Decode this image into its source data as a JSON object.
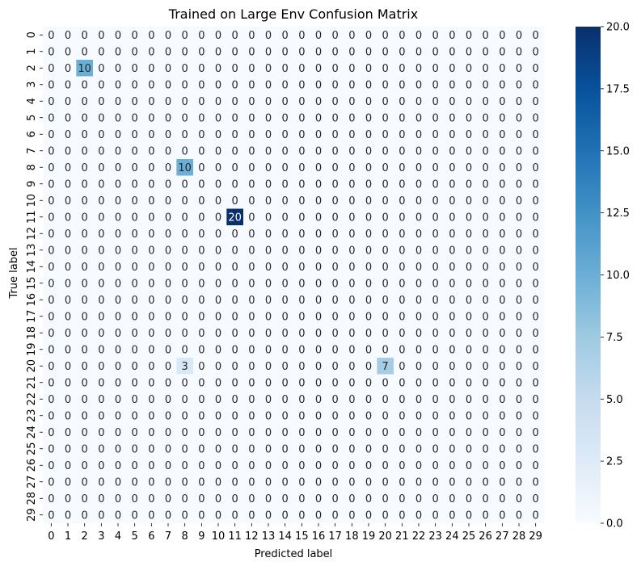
{
  "chart_data": {
    "type": "heatmap",
    "title": "Trained on Large Env Confusion Matrix",
    "xlabel": "Predicted label",
    "ylabel": "True label",
    "x_tick_labels": [
      "0",
      "1",
      "2",
      "3",
      "4",
      "5",
      "6",
      "7",
      "8",
      "9",
      "10",
      "11",
      "12",
      "13",
      "14",
      "15",
      "16",
      "17",
      "18",
      "19",
      "20",
      "21",
      "22",
      "23",
      "24",
      "25",
      "26",
      "27",
      "28",
      "29"
    ],
    "y_tick_labels": [
      "0",
      "1",
      "2",
      "3",
      "4",
      "5",
      "6",
      "7",
      "8",
      "9",
      "10",
      "11",
      "12",
      "13",
      "14",
      "15",
      "16",
      "17",
      "18",
      "19",
      "20",
      "21",
      "22",
      "23",
      "24",
      "25",
      "26",
      "27",
      "28",
      "29"
    ],
    "nonzero_cells": [
      {
        "true": 2,
        "pred": 2,
        "value": 10
      },
      {
        "true": 8,
        "pred": 8,
        "value": 10
      },
      {
        "true": 11,
        "pred": 11,
        "value": 20
      },
      {
        "true": 20,
        "pred": 8,
        "value": 3
      },
      {
        "true": 20,
        "pred": 20,
        "value": 7
      }
    ],
    "default_value": 0,
    "value_range": [
      0,
      20
    ],
    "colormap": "Blues",
    "colorbar_ticks": [
      "0.0",
      "2.5",
      "5.0",
      "7.5",
      "10.0",
      "12.5",
      "15.0",
      "17.5",
      "20.0"
    ],
    "colorbar_tick_values": [
      0,
      2.5,
      5,
      7.5,
      10,
      12.5,
      15,
      17.5,
      20
    ]
  }
}
